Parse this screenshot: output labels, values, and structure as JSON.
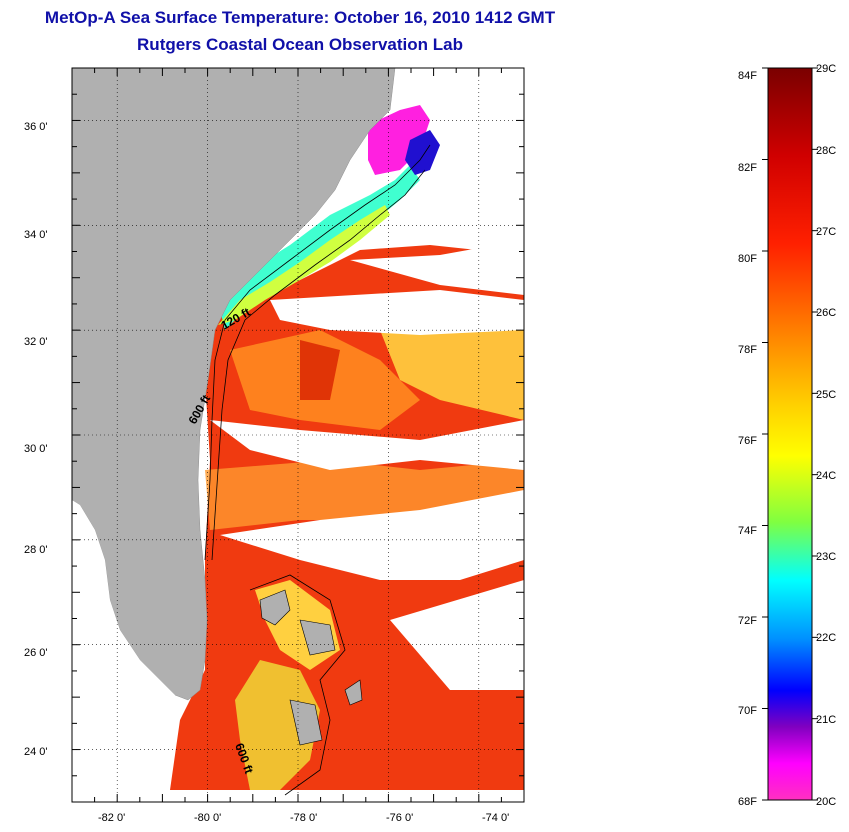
{
  "header": {
    "title": "MetOp-A Sea Surface Temperature:  October 16, 2010 1412 GMT",
    "subtitle": "Rutgers Coastal Ocean Observation Lab"
  },
  "map": {
    "lat_range": [
      23,
      37
    ],
    "lon_range": [
      -83,
      -73
    ],
    "lat_ticks": [
      "36 0'",
      "34 0'",
      "32 0'",
      "30 0'",
      "28 0'",
      "26 0'",
      "24 0'"
    ],
    "lon_ticks": [
      "-82 0'",
      "-80 0'",
      "-78 0'",
      "-76 0'",
      "-74 0'"
    ],
    "isobath_labels": [
      "120 ft",
      "600 ft",
      "600 ft"
    ],
    "grid": "dotted"
  },
  "colorbar": {
    "f_labels": [
      "84F",
      "82F",
      "80F",
      "78F",
      "76F",
      "74F",
      "72F",
      "70F",
      "68F"
    ],
    "c_labels": [
      "29C",
      "28C",
      "27C",
      "26C",
      "25C",
      "24C",
      "23C",
      "22C",
      "21C",
      "20C"
    ],
    "colors": [
      "#7a0000",
      "#c00000",
      "#ff0000",
      "#ff6000",
      "#ffb000",
      "#ffff00",
      "#80ff40",
      "#00ffff",
      "#0080ff",
      "#0000ff",
      "#8000c0",
      "#ff00ff",
      "#ff30c0"
    ]
  },
  "colors": {
    "land": "#b0b0b0",
    "title": "#1010a8"
  }
}
